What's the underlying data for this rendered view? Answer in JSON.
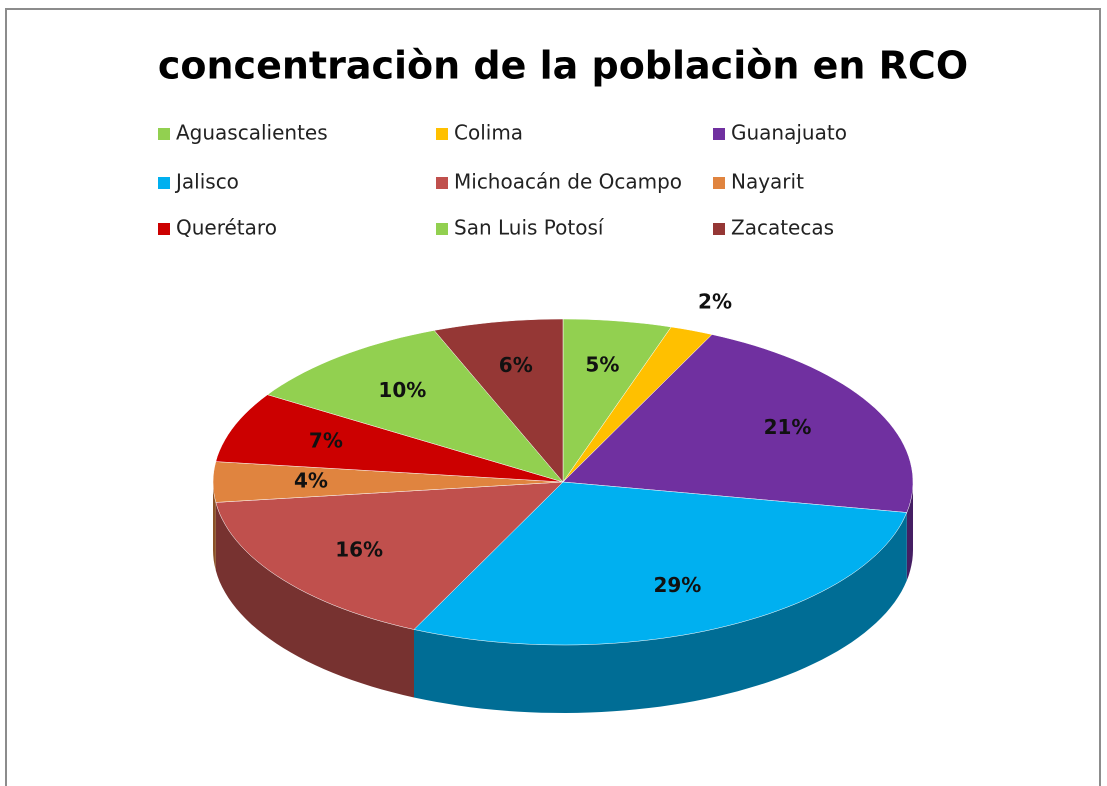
{
  "chart_data": {
    "type": "pie",
    "title": "concentraciòn de la poblaciòn en RCO",
    "categories": [
      "Aguascalientes",
      "Colima",
      "Guanajuato",
      "Jalisco",
      "Michoacán de Ocampo",
      "Nayarit",
      "Querétaro",
      "San Luis Potosí",
      "Zacatecas"
    ],
    "values": [
      5,
      2,
      21,
      29,
      16,
      4,
      7,
      10,
      6
    ],
    "value_labels": [
      "5%",
      "2%",
      "21%",
      "29%",
      "16%",
      "4%",
      "7%",
      "10%",
      "6%"
    ],
    "colors": [
      "#92d050",
      "#ffc000",
      "#7030a0",
      "#00b0f0",
      "#c0504d",
      "#e0843f",
      "#cc0000",
      "#92d050",
      "#953735"
    ],
    "legend": "top"
  }
}
